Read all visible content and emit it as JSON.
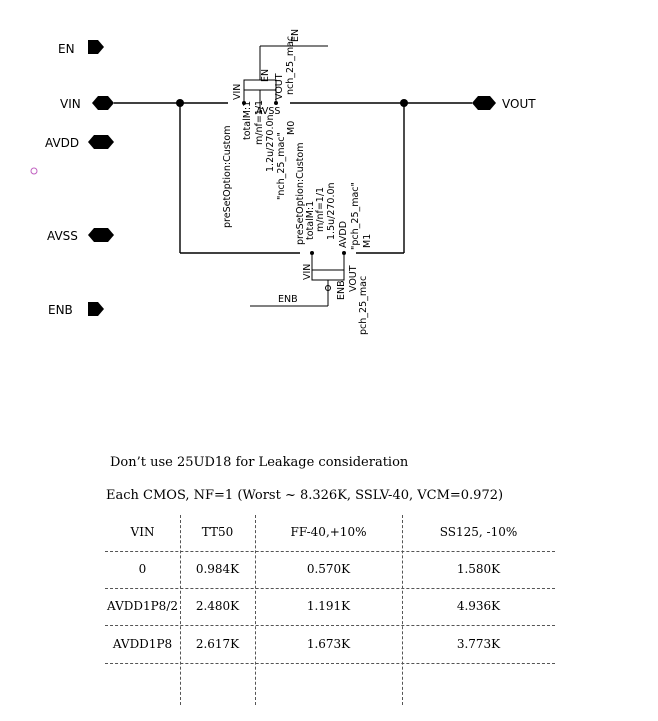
{
  "pins": {
    "en": "EN",
    "vin": "VIN",
    "avdd": "AVDD",
    "avss": "AVSS",
    "enb": "ENB",
    "vout": "VOUT"
  },
  "nmos": {
    "model_top": "nch_25_mac",
    "net_en": "EN",
    "pin_en": "EN",
    "pin_vin": "VIN",
    "pin_vout": "VOUT",
    "pin_avss": "AVSS",
    "name": "M0",
    "model_quoted": "\"nch_25_mac\"",
    "wl": "1.2u/270.0n",
    "mnf": "m/nf=1/1",
    "total": "totalM:1",
    "preset": "preSetOption:Custom",
    "preset2": "preSetOption:Custom"
  },
  "pmos": {
    "model_quoted": "\"pch_25_mac\"",
    "name": "M1",
    "pin_avdd": "AVDD",
    "pin_vout": "VOUT",
    "pin_vin": "VIN",
    "pin_enb": "ENB",
    "wl": "1.5u/270.0n",
    "mnf": "m/nf=1/1",
    "total": "totalM:1",
    "model_bottom": "pch_25_mac",
    "net_enb": "ENB"
  },
  "notes": {
    "line1": "Don’t use 25UD18 for Leakage consideration",
    "line2": "Each CMOS, NF=1 (Worst ~ 8.326K, SSLV-40, VCM=0.972)"
  },
  "table": {
    "headers": [
      "VIN",
      "TT50",
      "FF-40,+10%",
      "SS125, -10%"
    ],
    "rows": [
      [
        "0",
        "0.984K",
        "0.570K",
        "1.580K"
      ],
      [
        "AVDD1P8/2",
        "2.480K",
        "1.191K",
        "4.936K"
      ],
      [
        "AVDD1P8",
        "2.617K",
        "1.673K",
        "3.773K"
      ]
    ]
  }
}
